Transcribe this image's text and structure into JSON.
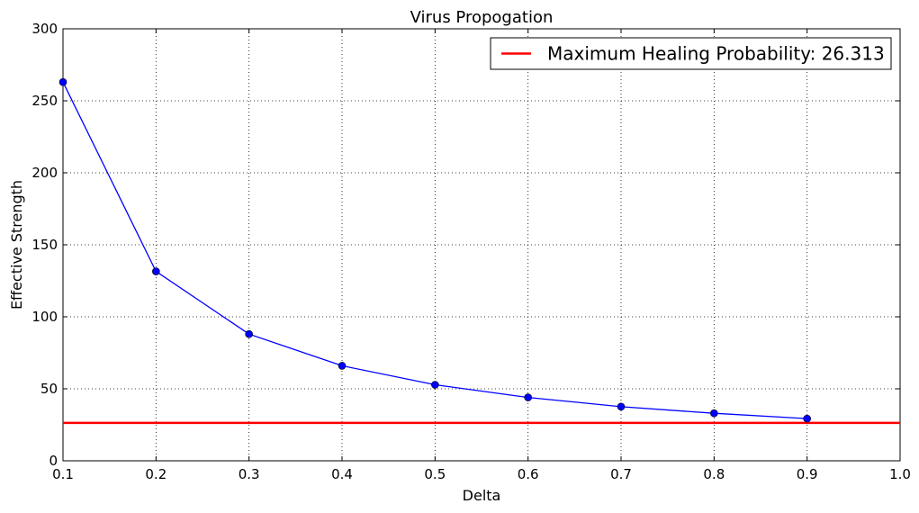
{
  "chart_data": {
    "type": "line",
    "title": "Virus Propogation",
    "xlabel": "Delta",
    "ylabel": "Effective Strength",
    "xlim": [
      0.1,
      1.0
    ],
    "ylim": [
      0,
      300
    ],
    "grid": true,
    "legend_position": "top-right",
    "x_ticks": [
      "0.1",
      "0.2",
      "0.3",
      "0.4",
      "0.5",
      "0.6",
      "0.7",
      "0.8",
      "0.9",
      "1.0"
    ],
    "y_ticks": [
      "0",
      "50",
      "100",
      "150",
      "200",
      "250",
      "300"
    ],
    "series": [
      {
        "color": "#0000ff",
        "marker": "circle",
        "x": [
          0.1,
          0.2,
          0.3,
          0.4,
          0.5,
          0.6,
          0.7,
          0.8,
          0.9
        ],
        "y": [
          263,
          131.5,
          88,
          66,
          52.8,
          44,
          37.6,
          33,
          29.3
        ]
      }
    ],
    "reference_lines": [
      {
        "name": "Maximum Healing Probability: 26.313",
        "orientation": "horizontal",
        "value": 26.313,
        "color": "#ff0000"
      }
    ]
  }
}
